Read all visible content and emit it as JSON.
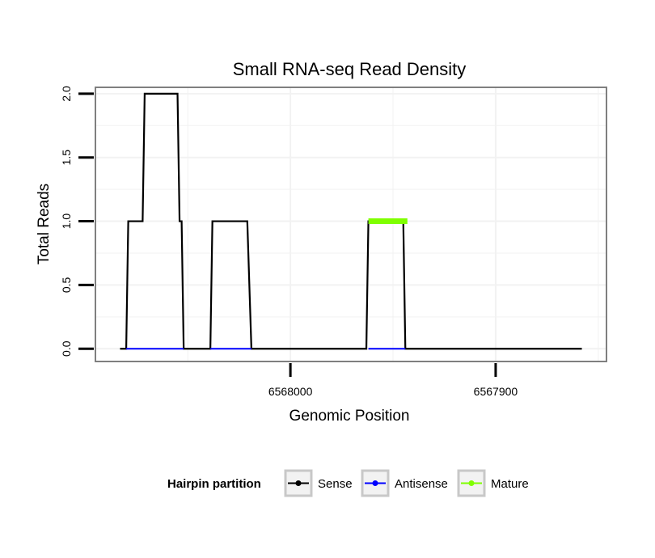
{
  "chart_data": {
    "type": "line",
    "title": "Small RNA-seq Read Density",
    "xlabel": "Genomic Position",
    "ylabel": "Total Reads",
    "xlim": [
      6568095,
      6567846
    ],
    "ylim": [
      -0.1,
      2.05
    ],
    "x_reversed": true,
    "x_ticks": [
      6568000,
      6567900
    ],
    "x_tick_labels": [
      "6568000",
      "6567900"
    ],
    "y_ticks": [
      0.0,
      0.5,
      1.0,
      1.5,
      2.0
    ],
    "y_tick_labels": [
      "0.0",
      "0.5",
      "1.0",
      "1.5",
      "2.0"
    ],
    "grid": true,
    "series": [
      {
        "name": "Sense",
        "color": "#000000",
        "x": [
          6568083,
          6568080,
          6568079,
          6568072,
          6568071,
          6568055,
          6568054,
          6568053,
          6568052,
          6568039,
          6568038,
          6568021,
          6568019,
          6567963,
          6567962,
          6567945,
          6567944,
          6567858
        ],
        "y": [
          0,
          0,
          1,
          1,
          2,
          2,
          1,
          1,
          0,
          0,
          1,
          1,
          0,
          0,
          1,
          1,
          0,
          0
        ]
      },
      {
        "name": "Antisense",
        "color": "#0000ff",
        "x": [
          6568080,
          6568052,
          6568039,
          6568019,
          6567962,
          6567944
        ],
        "y": [
          0,
          0,
          0,
          0,
          0,
          0
        ],
        "segments": [
          [
            0,
            1
          ],
          [
            2,
            3
          ],
          [
            4,
            5
          ]
        ]
      },
      {
        "name": "Mature",
        "color": "#7fff00",
        "x": [
          6567962,
          6567943
        ],
        "y": [
          1,
          1
        ]
      }
    ],
    "legend": {
      "title": "Hairpin partition",
      "position": "bottom",
      "items": [
        "Sense",
        "Antisense",
        "Mature"
      ]
    }
  }
}
